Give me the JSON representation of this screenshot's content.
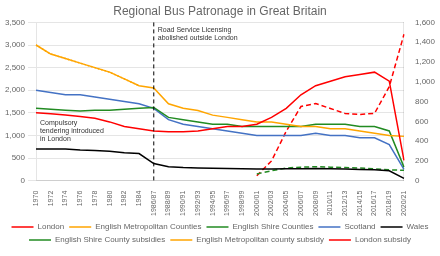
{
  "chart_data": {
    "type": "line",
    "title": "Regional Bus Patronage in Great Britain",
    "categories": [
      "1970",
      "1972",
      "1974",
      "1976",
      "1978",
      "1980",
      "1982",
      "1984",
      "1986/87",
      "1988/89",
      "1990/91",
      "1992/93",
      "1994/95",
      "1996/97",
      "1998/99",
      "2000/01",
      "2002/03",
      "2004/05",
      "2006/07",
      "2008/09",
      "2010/11",
      "2012/13",
      "2014/15",
      "2016/17",
      "2018/19",
      "2020/21"
    ],
    "series": [
      {
        "name": "London",
        "color": "#FF0000",
        "line_style": "solid",
        "values": [
          1500,
          1480,
          1450,
          1420,
          1380,
          1300,
          1200,
          1150,
          1100,
          1080,
          1080,
          1100,
          1150,
          1200,
          1200,
          1250,
          1400,
          1600,
          1900,
          2100,
          2200,
          2300,
          2350,
          2400,
          2200,
          450
        ]
      },
      {
        "name": "English Metropolitan Counties",
        "color": "#FFA500",
        "line_style": "solid",
        "values": [
          3000,
          2800,
          2700,
          2600,
          2500,
          2400,
          2250,
          2100,
          2050,
          1700,
          1600,
          1550,
          1450,
          1400,
          1350,
          1300,
          1300,
          1250,
          1200,
          1200,
          1150,
          1150,
          1100,
          1050,
          1000,
          980
        ]
      },
      {
        "name": "English Shire Counties",
        "color": "#228B22",
        "line_style": "solid",
        "values": [
          1600,
          1580,
          1560,
          1540,
          1560,
          1560,
          1580,
          1600,
          1620,
          1400,
          1350,
          1300,
          1250,
          1250,
          1200,
          1200,
          1200,
          1200,
          1200,
          1250,
          1250,
          1250,
          1200,
          1200,
          1100,
          300
        ]
      },
      {
        "name": "Scotland",
        "color": "#4472C4",
        "line_style": "solid",
        "values": [
          2000,
          1950,
          1900,
          1900,
          1850,
          1800,
          1750,
          1700,
          1600,
          1350,
          1250,
          1200,
          1150,
          1100,
          1050,
          1000,
          1000,
          1000,
          1000,
          1050,
          1000,
          1000,
          950,
          950,
          800,
          250
        ]
      },
      {
        "name": "Wales",
        "color": "#000000",
        "line_style": "solid",
        "values": [
          700,
          700,
          700,
          680,
          670,
          650,
          620,
          600,
          380,
          310,
          290,
          280,
          275,
          270,
          265,
          260,
          260,
          265,
          265,
          270,
          265,
          260,
          250,
          240,
          220,
          50
        ]
      },
      {
        "name": "English Shire County subsidies",
        "color": "#228B22",
        "line_style": "dashed",
        "values": [
          null,
          null,
          null,
          null,
          null,
          null,
          null,
          null,
          null,
          null,
          null,
          null,
          null,
          null,
          null,
          150,
          220,
          280,
          300,
          310,
          300,
          290,
          280,
          260,
          240,
          230
        ]
      },
      {
        "name": "English Metropolitan county subsidy",
        "color": "#FFA500",
        "line_style": "dotted",
        "values": [
          3000,
          2800,
          2700,
          2600,
          2500,
          2400,
          2250,
          2100,
          null,
          null,
          null,
          null,
          null,
          null,
          null,
          null,
          null,
          null,
          null,
          null,
          null,
          null,
          null,
          null,
          null,
          null
        ]
      },
      {
        "name": "London subsidy",
        "color": "#FF0000",
        "line_style": "dashed",
        "axis": "y2",
        "values": [
          null,
          null,
          null,
          null,
          null,
          null,
          null,
          null,
          null,
          null,
          null,
          null,
          null,
          null,
          null,
          50,
          200,
          500,
          750,
          780,
          730,
          680,
          670,
          680,
          950,
          1480
        ]
      }
    ],
    "ylim": [
      0,
      3500
    ],
    "yticks": [
      0,
      500,
      {
        "value": 1000,
        "label": "1,000"
      },
      {
        "value": 1500,
        "label": "1,500"
      },
      {
        "value": 2000,
        "label": "2,000"
      },
      {
        "value": 2500,
        "label": "2,500"
      },
      {
        "value": 3000,
        "label": "3,000"
      },
      {
        "value": 3500,
        "label": "3,500"
      }
    ],
    "y2lim": [
      0,
      1600
    ],
    "y2ticks": [
      0,
      200,
      400,
      600,
      800,
      {
        "value": 1000,
        "label": "1,000"
      },
      {
        "value": 1200,
        "label": "1,200"
      },
      {
        "value": 1400,
        "label": "1,400"
      },
      {
        "value": 1600,
        "label": "1,600"
      }
    ],
    "vlines": [
      "1986/87"
    ],
    "annotations": [
      {
        "text": "Compulsory\ntendering introduced\nin London",
        "x": "1970",
        "y": 1350
      },
      {
        "text": "Road Service Licensing\nabolished outside London",
        "x": "1986/87",
        "y": 3400
      }
    ],
    "grid": true,
    "legend": "bottom"
  }
}
